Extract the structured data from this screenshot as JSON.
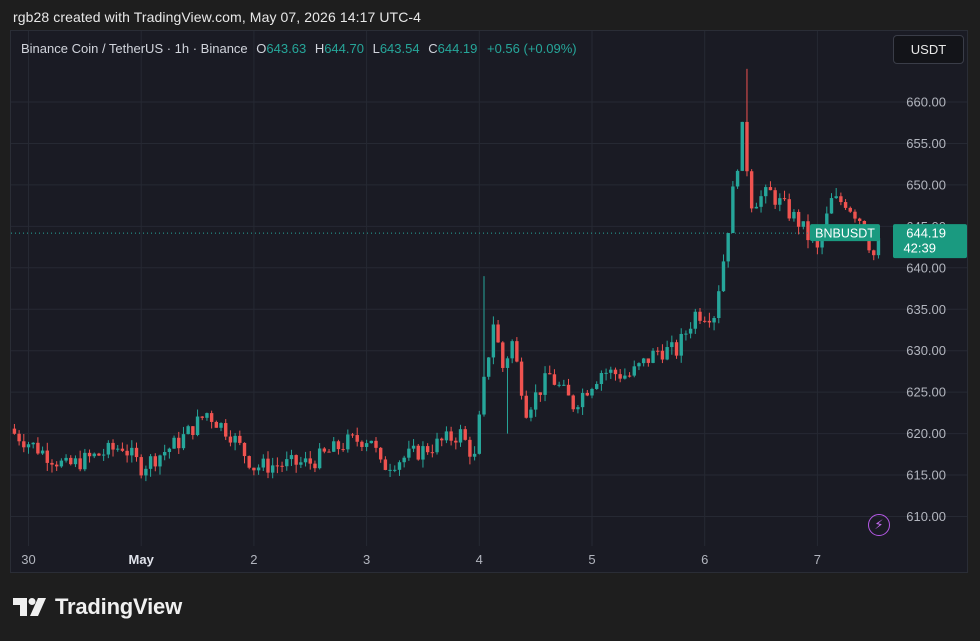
{
  "header": {
    "credit": "rgb28 created with TradingView.com, May 07, 2026 14:17 UTC-4"
  },
  "legend": {
    "symbol": "Binance Coin / TetherUS · 1h · Binance",
    "open_key": "O",
    "open": "643.63",
    "high_key": "H",
    "high": "644.70",
    "low_key": "L",
    "low": "643.54",
    "close_key": "C",
    "close": "644.19",
    "change": "+0.56 (+0.09%)"
  },
  "currency_button": "USDT",
  "price_tag": {
    "ticker": "BNBUSDT",
    "price": "644.19",
    "countdown": "42:39"
  },
  "brand": "TradingView",
  "icons": {
    "bolt": "lightning-bolt-icon",
    "logo": "tradingview-logo-icon"
  },
  "colors": {
    "up": "#26a69a",
    "down": "#ef5350",
    "background": "#1a1b24",
    "grid": "#262933",
    "tag": "#1a9a80"
  },
  "chart_data": {
    "type": "candlestick",
    "title": "Binance Coin / TetherUS · 1h · Binance",
    "interval": "1h",
    "x_tick_labels": [
      "30",
      "May",
      "2",
      "3",
      "4",
      "5",
      "6",
      "7"
    ],
    "y_tick_labels": [
      "610.00",
      "615.00",
      "620.00",
      "625.00",
      "630.00",
      "635.00",
      "640.00",
      "645.00",
      "650.00",
      "655.00",
      "660.00"
    ],
    "ylim": [
      607,
      666
    ],
    "grid": true,
    "last_price": 644.19,
    "ohlc_last": {
      "open": 643.63,
      "high": 644.7,
      "low": 643.54,
      "close": 644.19
    },
    "close_path_keypoints": [
      {
        "time": "Apr 29 21:00",
        "close": 620.0
      },
      {
        "time": "Apr 30 08:00",
        "close": 616.0
      },
      {
        "time": "Apr 30 20:00",
        "close": 618.5
      },
      {
        "time": "May 01 00:00",
        "close": 616.0
      },
      {
        "time": "May 01 08:00",
        "close": 619.0
      },
      {
        "time": "May 01 14:00",
        "close": 622.5
      },
      {
        "time": "May 01 19:00",
        "close": 620.0
      },
      {
        "time": "May 02 00:00",
        "close": 616.0
      },
      {
        "time": "May 02 12:00",
        "close": 616.5
      },
      {
        "time": "May 02 20:00",
        "close": 619.0
      },
      {
        "time": "May 03 01:00",
        "close": 619.5
      },
      {
        "time": "May 03 03:00",
        "close": 616.0
      },
      {
        "time": "May 03 12:00",
        "close": 618.0
      },
      {
        "time": "May 03 20:00",
        "close": 620.0
      },
      {
        "time": "May 03 23:00",
        "close": 617.0
      },
      {
        "time": "May 04 01:00",
        "close": 626.0
      },
      {
        "time": "May 04 03:00",
        "close": 633.5
      },
      {
        "time": "May 04 05:00",
        "close": 628.0
      },
      {
        "time": "May 04 07:00",
        "close": 631.0
      },
      {
        "time": "May 04 10:00",
        "close": 623.0
      },
      {
        "time": "May 04 15:00",
        "close": 627.0
      },
      {
        "time": "May 04 20:00",
        "close": 623.5
      },
      {
        "time": "May 05 02:00",
        "close": 627.5
      },
      {
        "time": "May 05 08:00",
        "close": 627.0
      },
      {
        "time": "May 05 14:00",
        "close": 630.0
      },
      {
        "time": "May 05 18:00",
        "close": 630.0
      },
      {
        "time": "May 05 22:00",
        "close": 634.5
      },
      {
        "time": "May 06 02:00",
        "close": 634.5
      },
      {
        "time": "May 06 04:00",
        "close": 641.0
      },
      {
        "time": "May 06 06:00",
        "close": 649.0
      },
      {
        "time": "May 06 08:00",
        "close": 656.5
      },
      {
        "time": "May 06 10:00",
        "close": 648.0
      },
      {
        "time": "May 06 14:00",
        "close": 649.0
      },
      {
        "time": "May 06 20:00",
        "close": 645.5
      },
      {
        "time": "May 07 00:00",
        "close": 642.0
      },
      {
        "time": "May 07 03:00",
        "close": 648.0
      },
      {
        "time": "May 07 06:00",
        "close": 648.0
      },
      {
        "time": "May 07 09:00",
        "close": 646.0
      },
      {
        "time": "May 07 12:00",
        "close": 641.5
      },
      {
        "time": "May 07 14:00",
        "close": 644.19
      }
    ],
    "notable_wicks": [
      {
        "time": "May 04 01:00",
        "high": 639.0
      },
      {
        "time": "May 06 09:00",
        "high": 664.0
      },
      {
        "time": "May 04 06:00",
        "low": 620.0
      }
    ]
  }
}
